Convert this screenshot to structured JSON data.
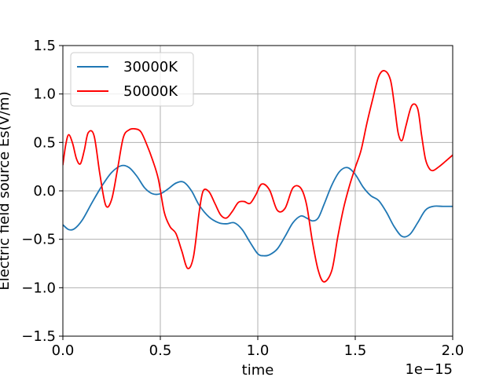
{
  "chart_data": {
    "type": "line",
    "xlabel": "time",
    "ylabel": "Electric field source Es(V/m)",
    "x_offset_label": "1e−15",
    "xlim": [
      0.0,
      2.0
    ],
    "ylim": [
      -1.5,
      1.5
    ],
    "x_unit_multiplier": 1e-15,
    "xticks": [
      0.0,
      0.5,
      1.0,
      1.5,
      2.0
    ],
    "xtick_labels": [
      "0.0",
      "0.5",
      "1.0",
      "1.5",
      "2.0"
    ],
    "yticks": [
      -1.5,
      -1.0,
      -0.5,
      0.0,
      0.5,
      1.0,
      1.5
    ],
    "ytick_labels": [
      "−1.5",
      "−1.0",
      "−0.5",
      "0.0",
      "0.5",
      "1.0",
      "1.5"
    ],
    "grid": true,
    "legend_position": "top-left",
    "series": [
      {
        "name": "30000K",
        "color": "#1f77b4",
        "x": [
          0.0,
          0.03,
          0.06,
          0.1,
          0.15,
          0.2,
          0.25,
          0.3,
          0.34,
          0.38,
          0.42,
          0.46,
          0.5,
          0.54,
          0.58,
          0.62,
          0.66,
          0.7,
          0.75,
          0.8,
          0.84,
          0.88,
          0.92,
          0.96,
          1.0,
          1.03,
          1.06,
          1.1,
          1.14,
          1.18,
          1.22,
          1.25,
          1.28,
          1.31,
          1.34,
          1.38,
          1.42,
          1.46,
          1.5,
          1.54,
          1.58,
          1.62,
          1.66,
          1.7,
          1.74,
          1.78,
          1.82,
          1.86,
          1.9,
          1.95,
          2.0
        ],
        "y": [
          -0.35,
          -0.4,
          -0.39,
          -0.3,
          -0.12,
          0.05,
          0.19,
          0.26,
          0.24,
          0.15,
          0.03,
          -0.03,
          -0.03,
          0.02,
          0.08,
          0.09,
          0.0,
          -0.15,
          -0.27,
          -0.33,
          -0.34,
          -0.33,
          -0.4,
          -0.53,
          -0.65,
          -0.67,
          -0.66,
          -0.6,
          -0.47,
          -0.33,
          -0.26,
          -0.28,
          -0.31,
          -0.28,
          -0.14,
          0.06,
          0.2,
          0.24,
          0.17,
          0.04,
          -0.05,
          -0.1,
          -0.22,
          -0.37,
          -0.47,
          -0.45,
          -0.33,
          -0.2,
          -0.16,
          -0.16,
          -0.16
        ]
      },
      {
        "name": "50000K",
        "color": "#ff0000",
        "x": [
          0.0,
          0.015,
          0.03,
          0.05,
          0.07,
          0.09,
          0.11,
          0.13,
          0.16,
          0.19,
          0.22,
          0.25,
          0.28,
          0.31,
          0.34,
          0.37,
          0.4,
          0.43,
          0.46,
          0.49,
          0.52,
          0.55,
          0.58,
          0.61,
          0.64,
          0.67,
          0.7,
          0.72,
          0.75,
          0.78,
          0.81,
          0.84,
          0.87,
          0.9,
          0.93,
          0.96,
          0.99,
          1.02,
          1.06,
          1.1,
          1.14,
          1.18,
          1.22,
          1.25,
          1.28,
          1.31,
          1.34,
          1.38,
          1.41,
          1.44,
          1.47,
          1.5,
          1.53,
          1.56,
          1.59,
          1.62,
          1.65,
          1.68,
          1.7,
          1.72,
          1.74,
          1.76,
          1.79,
          1.82,
          1.84,
          1.86,
          1.88,
          1.9,
          1.93,
          1.96,
          2.0
        ],
        "y": [
          0.27,
          0.48,
          0.58,
          0.49,
          0.33,
          0.28,
          0.42,
          0.6,
          0.57,
          0.17,
          -0.15,
          -0.09,
          0.22,
          0.55,
          0.63,
          0.64,
          0.61,
          0.48,
          0.32,
          0.12,
          -0.22,
          -0.37,
          -0.44,
          -0.62,
          -0.8,
          -0.68,
          -0.21,
          0.0,
          -0.01,
          -0.13,
          -0.25,
          -0.28,
          -0.21,
          -0.12,
          -0.11,
          -0.13,
          -0.04,
          0.07,
          0.01,
          -0.2,
          -0.18,
          0.03,
          0.03,
          -0.14,
          -0.52,
          -0.82,
          -0.94,
          -0.82,
          -0.48,
          -0.18,
          0.05,
          0.24,
          0.42,
          0.7,
          0.95,
          1.18,
          1.24,
          1.15,
          0.9,
          0.6,
          0.52,
          0.67,
          0.88,
          0.85,
          0.58,
          0.33,
          0.23,
          0.21,
          0.25,
          0.3,
          0.37
        ]
      }
    ]
  }
}
